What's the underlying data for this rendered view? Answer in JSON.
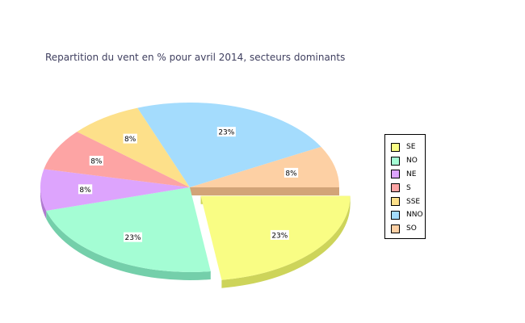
{
  "chart_data": {
    "type": "pie",
    "title": "Repartition du vent en % pour avril 2014, secteurs dominants",
    "legend_position": "right",
    "exploded": "SE",
    "slices": [
      {
        "label": "SE",
        "value": 23,
        "display": "23%",
        "color": "#f9fd84",
        "side_color": "#cdd45a"
      },
      {
        "label": "NO",
        "value": 23,
        "display": "23%",
        "color": "#a4fdd4",
        "side_color": "#74cfaa"
      },
      {
        "label": "NE",
        "value": 8,
        "display": "8%",
        "color": "#dda4fd",
        "side_color": "#b07ad0"
      },
      {
        "label": "S",
        "value": 8,
        "display": "8%",
        "color": "#fda4a4",
        "side_color": "#d07878"
      },
      {
        "label": "SSE",
        "value": 8,
        "display": "8%",
        "color": "#fde08a",
        "side_color": "#d2b460"
      },
      {
        "label": "NNO",
        "value": 23,
        "display": "23%",
        "color": "#a4dcfd",
        "side_color": "#78b0d2"
      },
      {
        "label": "SO",
        "value": 8,
        "display": "8%",
        "color": "#fdd0a4",
        "side_color": "#d2a478"
      }
    ]
  }
}
